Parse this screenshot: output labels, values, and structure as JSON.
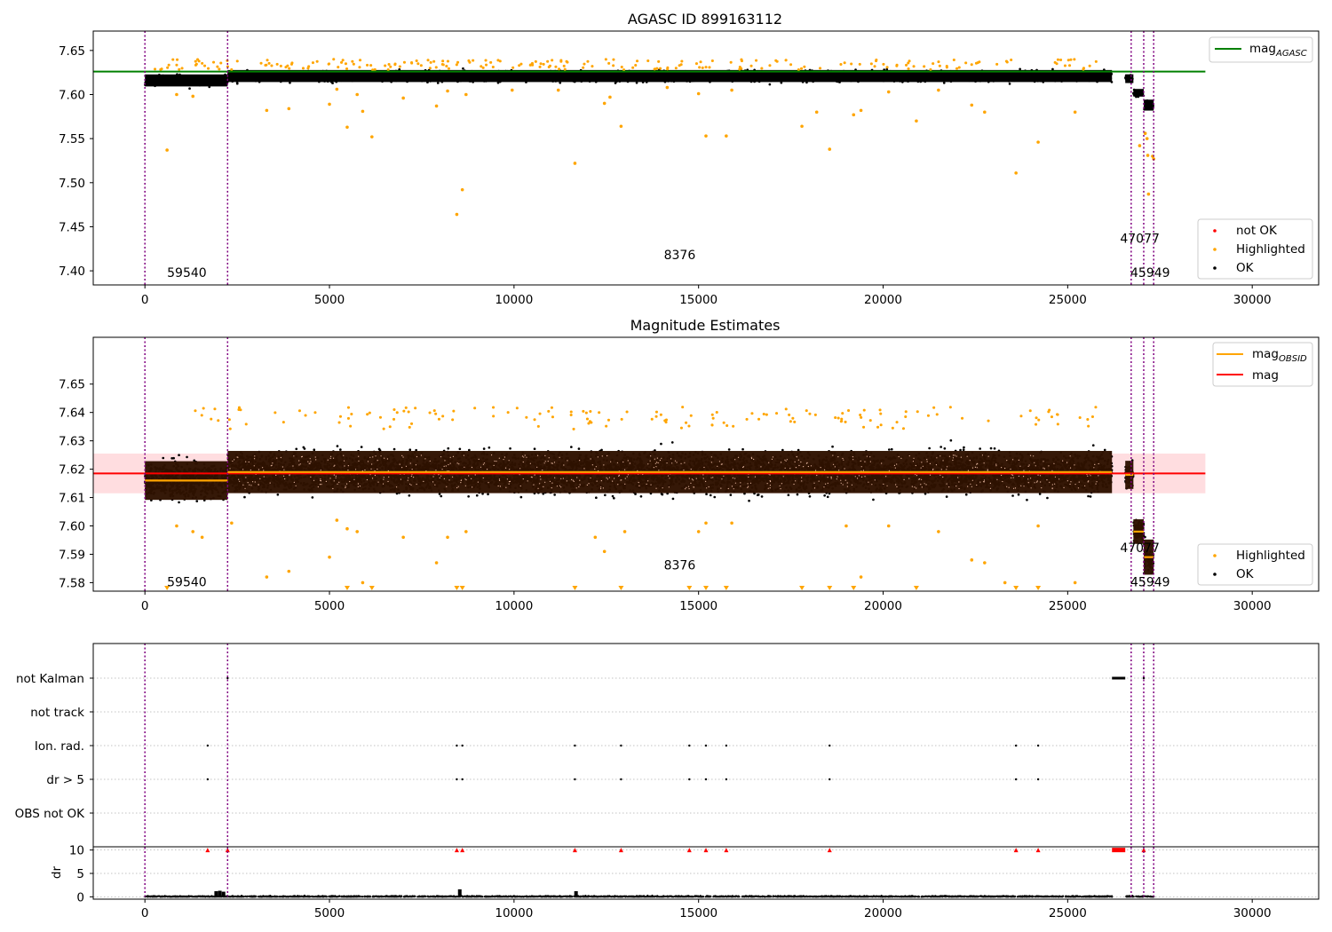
{
  "figure": {
    "background": "#ffffff"
  },
  "chart_data": [
    {
      "type": "scatter",
      "title": "AGASC ID 899163112",
      "xlim": [
        -1400,
        31800
      ],
      "ylim": [
        7.384,
        7.672
      ],
      "x_ticks": [
        0,
        5000,
        10000,
        15000,
        20000,
        25000,
        30000
      ],
      "y_ticks": [
        7.4,
        7.45,
        7.5,
        7.55,
        7.6,
        7.65
      ],
      "y_tick_labels": [
        "7.40",
        "7.45",
        "7.50",
        "7.55",
        "7.60",
        "7.65"
      ],
      "vlines": [
        0,
        2240,
        26720,
        27060,
        27330
      ],
      "vline_color": "#800080",
      "reference_line": {
        "name": "mag_AGASC",
        "y": 7.626,
        "x_range": [
          -1400,
          28730
        ],
        "color": "#008000"
      },
      "dense_bands": [
        {
          "x": [
            0,
            2240
          ],
          "y_center": 7.616,
          "y_spread": 0.011
        },
        {
          "x": [
            2240,
            26200
          ],
          "y_center": 7.621,
          "y_spread": 0.011
        },
        {
          "x": [
            26560,
            26780
          ],
          "y_center": 7.618,
          "y_spread": 0.008
        },
        {
          "x": [
            26780,
            27060
          ],
          "y_center": 7.602,
          "y_spread": 0.007
        },
        {
          "x": [
            27060,
            27330
          ],
          "y_center": 7.588,
          "y_spread": 0.01
        }
      ],
      "highlighted_points": [
        [
          600,
          7.537
        ],
        [
          860,
          7.6
        ],
        [
          1300,
          7.598
        ],
        [
          3300,
          7.582
        ],
        [
          3900,
          7.584
        ],
        [
          5000,
          7.589
        ],
        [
          5200,
          7.606
        ],
        [
          5480,
          7.563
        ],
        [
          5750,
          7.6
        ],
        [
          5900,
          7.581
        ],
        [
          6150,
          7.552
        ],
        [
          7000,
          7.596
        ],
        [
          7900,
          7.587
        ],
        [
          8200,
          7.604
        ],
        [
          8450,
          7.464
        ],
        [
          8600,
          7.492
        ],
        [
          8700,
          7.6
        ],
        [
          9950,
          7.605
        ],
        [
          11200,
          7.605
        ],
        [
          11650,
          7.522
        ],
        [
          12600,
          7.597
        ],
        [
          12900,
          7.564
        ],
        [
          12450,
          7.59
        ],
        [
          14150,
          7.608
        ],
        [
          15000,
          7.601
        ],
        [
          15200,
          7.553
        ],
        [
          15750,
          7.553
        ],
        [
          15900,
          7.605
        ],
        [
          17800,
          7.564
        ],
        [
          18200,
          7.58
        ],
        [
          18550,
          7.538
        ],
        [
          19200,
          7.577
        ],
        [
          19400,
          7.582
        ],
        [
          20150,
          7.603
        ],
        [
          20900,
          7.57
        ],
        [
          21500,
          7.605
        ],
        [
          22400,
          7.588
        ],
        [
          22750,
          7.58
        ],
        [
          23600,
          7.511
        ],
        [
          24200,
          7.546
        ],
        [
          25200,
          7.58
        ],
        [
          26950,
          7.542
        ],
        [
          27100,
          7.556
        ],
        [
          27150,
          7.55
        ],
        [
          27170,
          7.531
        ],
        [
          27190,
          7.487
        ],
        [
          27300,
          7.53
        ],
        [
          27330,
          7.527
        ]
      ],
      "top_highlight_y_range": [
        7.628,
        7.64
      ],
      "annotations": [
        {
          "text": "59540",
          "x": 600,
          "y": 7.393
        },
        {
          "text": "8376",
          "x": 14060,
          "y": 7.413
        },
        {
          "text": "47077",
          "x": 26420,
          "y": 7.432
        },
        {
          "text": "45949",
          "x": 26700,
          "y": 7.393
        }
      ],
      "legends": [
        {
          "position": "top-right",
          "entries": [
            {
              "label": "mag",
              "subscript": "AGASC",
              "marker": "line",
              "color": "#008000"
            }
          ]
        },
        {
          "position": "bottom-right",
          "entries": [
            {
              "label": "not OK",
              "marker": "dot",
              "color": "#ff0000"
            },
            {
              "label": "Highlighted",
              "marker": "dot",
              "color": "#ffa500"
            },
            {
              "label": "OK",
              "marker": "dot",
              "color": "#000000"
            }
          ]
        }
      ]
    },
    {
      "type": "scatter",
      "title": "Magnitude Estimates",
      "xlim": [
        -1400,
        31800
      ],
      "ylim": [
        7.577,
        7.6665
      ],
      "x_ticks": [
        0,
        5000,
        10000,
        15000,
        20000,
        25000,
        30000
      ],
      "y_ticks": [
        7.58,
        7.59,
        7.6,
        7.61,
        7.62,
        7.63,
        7.64,
        7.65
      ],
      "y_tick_labels": [
        "7.58",
        "7.59",
        "7.60",
        "7.61",
        "7.62",
        "7.63",
        "7.64",
        "7.65"
      ],
      "vlines": [
        0,
        2240,
        26720,
        27060,
        27330
      ],
      "vline_color": "#800080",
      "mag": {
        "y": 7.6185,
        "band": [
          7.6115,
          7.6255
        ],
        "x_range": [
          -1400,
          28730
        ],
        "color": "#ff0000",
        "band_color": "#ffdde0"
      },
      "obsid_segments": [
        {
          "x": [
            0,
            2240
          ],
          "y": 7.616
        },
        {
          "x": [
            2240,
            26200
          ],
          "y": 7.619
        },
        {
          "x": [
            26560,
            26780
          ],
          "y": 7.618
        },
        {
          "x": [
            26780,
            27060
          ],
          "y": 7.598
        },
        {
          "x": [
            27060,
            27330
          ],
          "y": 7.589
        }
      ],
      "dense_bands": [
        {
          "x": [
            0,
            2240
          ],
          "y_center": 7.616,
          "y_spread": 0.011
        },
        {
          "x": [
            2240,
            26200
          ],
          "y_center": 7.619,
          "y_spread": 0.012
        },
        {
          "x": [
            26560,
            26780
          ],
          "y_center": 7.618,
          "y_spread": 0.008
        },
        {
          "x": [
            26780,
            27060
          ],
          "y_center": 7.598,
          "y_spread": 0.007
        },
        {
          "x": [
            27060,
            27330
          ],
          "y_center": 7.589,
          "y_spread": 0.01
        }
      ],
      "highlighted_points": [
        [
          860,
          7.6
        ],
        [
          1300,
          7.598
        ],
        [
          1550,
          7.596
        ],
        [
          2350,
          7.601
        ],
        [
          3300,
          7.582
        ],
        [
          3900,
          7.584
        ],
        [
          5000,
          7.589
        ],
        [
          5200,
          7.602
        ],
        [
          5480,
          7.599
        ],
        [
          5750,
          7.598
        ],
        [
          5900,
          7.58
        ],
        [
          7000,
          7.596
        ],
        [
          7900,
          7.587
        ],
        [
          8200,
          7.596
        ],
        [
          8700,
          7.598
        ],
        [
          12200,
          7.596
        ],
        [
          12450,
          7.591
        ],
        [
          13000,
          7.598
        ],
        [
          15000,
          7.598
        ],
        [
          15200,
          7.601
        ],
        [
          15900,
          7.601
        ],
        [
          19000,
          7.6
        ],
        [
          19400,
          7.582
        ],
        [
          20150,
          7.6
        ],
        [
          21500,
          7.598
        ],
        [
          22400,
          7.588
        ],
        [
          22750,
          7.587
        ],
        [
          23300,
          7.58
        ],
        [
          24200,
          7.6
        ],
        [
          25200,
          7.58
        ]
      ],
      "clipped_highlight_x": [
        600,
        5480,
        6150,
        8450,
        8600,
        11650,
        12900,
        14750,
        15200,
        15750,
        17800,
        18550,
        19200,
        20900,
        23600,
        24200
      ],
      "top_highlight_y_range": [
        7.634,
        7.642
      ],
      "annotations": [
        {
          "text": "59540",
          "x": 600,
          "y": 7.5787
        },
        {
          "text": "8376",
          "x": 14060,
          "y": 7.5847
        },
        {
          "text": "47077",
          "x": 26420,
          "y": 7.5907
        },
        {
          "text": "45949",
          "x": 26700,
          "y": 7.5787
        }
      ],
      "legends": [
        {
          "position": "top-right",
          "entries": [
            {
              "label": "mag",
              "subscript": "OBSID",
              "marker": "line",
              "color": "#ffa500"
            },
            {
              "label": "mag",
              "marker": "line",
              "color": "#ff0000"
            }
          ]
        },
        {
          "position": "bottom-right",
          "entries": [
            {
              "label": "Highlighted",
              "marker": "dot",
              "color": "#ffa500"
            },
            {
              "label": "OK",
              "marker": "dot",
              "color": "#000000"
            }
          ]
        }
      ]
    },
    {
      "type": "scatter",
      "xlim": [
        -1400,
        31800
      ],
      "x_ticks": [
        0,
        5000,
        10000,
        15000,
        20000,
        25000,
        30000
      ],
      "vlines": [
        0,
        2240,
        26720,
        27060,
        27330
      ],
      "vline_color": "#800080",
      "flag_rows": [
        "not Kalman",
        "not track",
        "Ion. rad.",
        "dr > 5",
        "OBS not OK"
      ],
      "flag_points": {
        "not Kalman": [
          2240,
          27060
        ],
        "not track": [],
        "Ion. rad.": [
          1700,
          8450,
          8600,
          11650,
          12900,
          14750,
          15200,
          15750,
          18550,
          23600,
          24200
        ],
        "dr > 5": [
          1700,
          8450,
          8600,
          11650,
          12900,
          14750,
          15200,
          15750,
          18550,
          23600,
          24200
        ],
        "OBS not OK": []
      },
      "not_kalman_band": [
        26200,
        26560
      ],
      "dr_axis": {
        "ylabel": "dr",
        "ylim": [
          -0.5,
          10.5
        ],
        "y_ticks": [
          0,
          5,
          10
        ],
        "y_tick_labels": [
          "0",
          "5",
          "10"
        ]
      },
      "dr_clipped_x": [
        1700,
        2240,
        8450,
        8600,
        11650,
        12900,
        14750,
        15200,
        15750,
        18550,
        23600,
        24200,
        27060
      ],
      "dr_clipped_band": [
        26200,
        26560
      ],
      "dr_bumps": [
        [
          1930,
          1.2
        ],
        [
          2030,
          1.3
        ],
        [
          2130,
          1.1
        ],
        [
          8530,
          1.6
        ],
        [
          11680,
          1.2
        ]
      ]
    }
  ]
}
